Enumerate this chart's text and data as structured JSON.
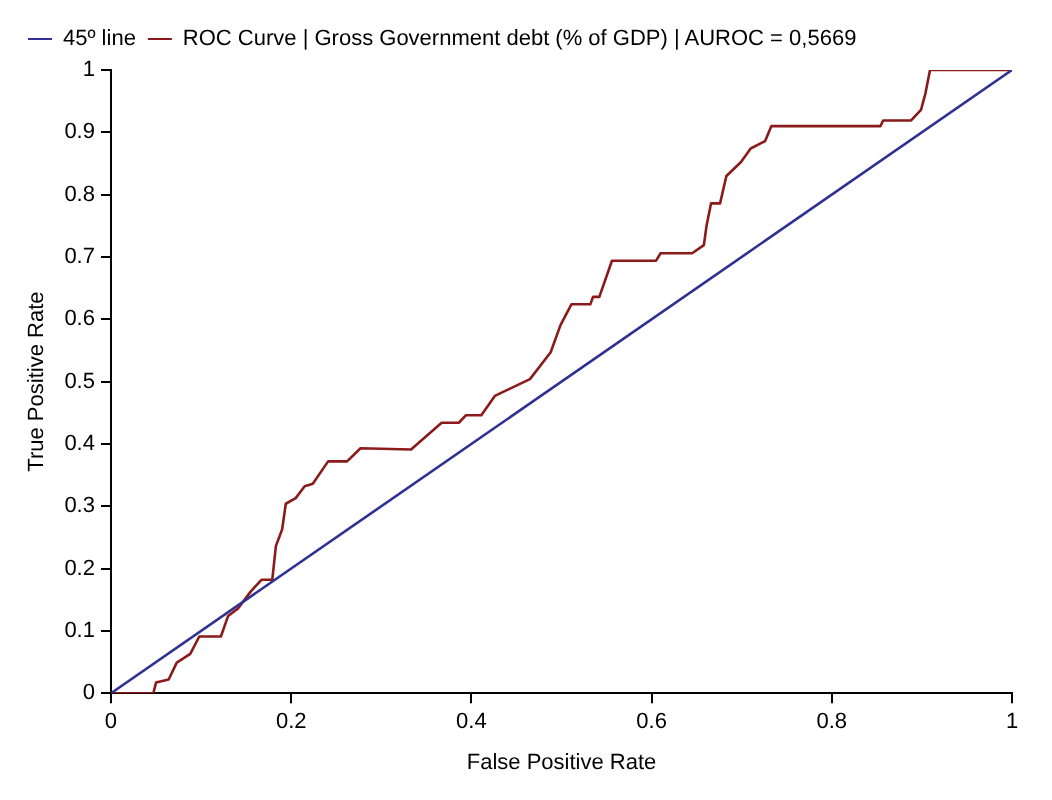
{
  "chart_data": {
    "type": "line",
    "xlabel": "False Positive Rate",
    "ylabel": "True Positive Rate",
    "xlim": [
      0,
      1
    ],
    "ylim": [
      0,
      1
    ],
    "xticks": [
      0,
      0.2,
      0.4,
      0.6,
      0.8,
      1
    ],
    "yticks": [
      0,
      0.1,
      0.2,
      0.3,
      0.4,
      0.5,
      0.6,
      0.7,
      0.8,
      0.9,
      1
    ],
    "grid": false,
    "legend": "top left",
    "marker": "none",
    "line_style": "solid",
    "series": [
      {
        "name": "45º line",
        "color": "#2e3192",
        "x": [
          0,
          1
        ],
        "values": [
          0,
          1
        ]
      },
      {
        "name": "ROC Curve | Gross Government debt (% of GDP) | AUROC = 0,5669",
        "color": "#8b1a1a",
        "x": [
          0,
          0.047,
          0.05,
          0.064,
          0.073,
          0.088,
          0.098,
          0.122,
          0.13,
          0.141,
          0.155,
          0.167,
          0.179,
          0.183,
          0.19,
          0.194,
          0.205,
          0.215,
          0.224,
          0.241,
          0.262,
          0.277,
          0.333,
          0.367,
          0.386,
          0.394,
          0.411,
          0.426,
          0.465,
          0.488,
          0.499,
          0.511,
          0.532,
          0.535,
          0.542,
          0.556,
          0.605,
          0.61,
          0.645,
          0.658,
          0.661,
          0.666,
          0.676,
          0.683,
          0.699,
          0.71,
          0.726,
          0.733,
          0.854,
          0.857,
          0.888,
          0.899,
          0.904,
          0.909,
          1
        ],
        "values": [
          0,
          0,
          0.017,
          0.022,
          0.049,
          0.063,
          0.091,
          0.091,
          0.124,
          0.136,
          0.163,
          0.182,
          0.182,
          0.236,
          0.263,
          0.304,
          0.313,
          0.332,
          0.336,
          0.372,
          0.372,
          0.393,
          0.391,
          0.434,
          0.434,
          0.446,
          0.446,
          0.477,
          0.504,
          0.547,
          0.591,
          0.624,
          0.624,
          0.636,
          0.636,
          0.694,
          0.694,
          0.706,
          0.706,
          0.719,
          0.75,
          0.786,
          0.786,
          0.83,
          0.852,
          0.874,
          0.886,
          0.91,
          0.91,
          0.919,
          0.919,
          0.936,
          0.963,
          1,
          1
        ]
      }
    ]
  }
}
